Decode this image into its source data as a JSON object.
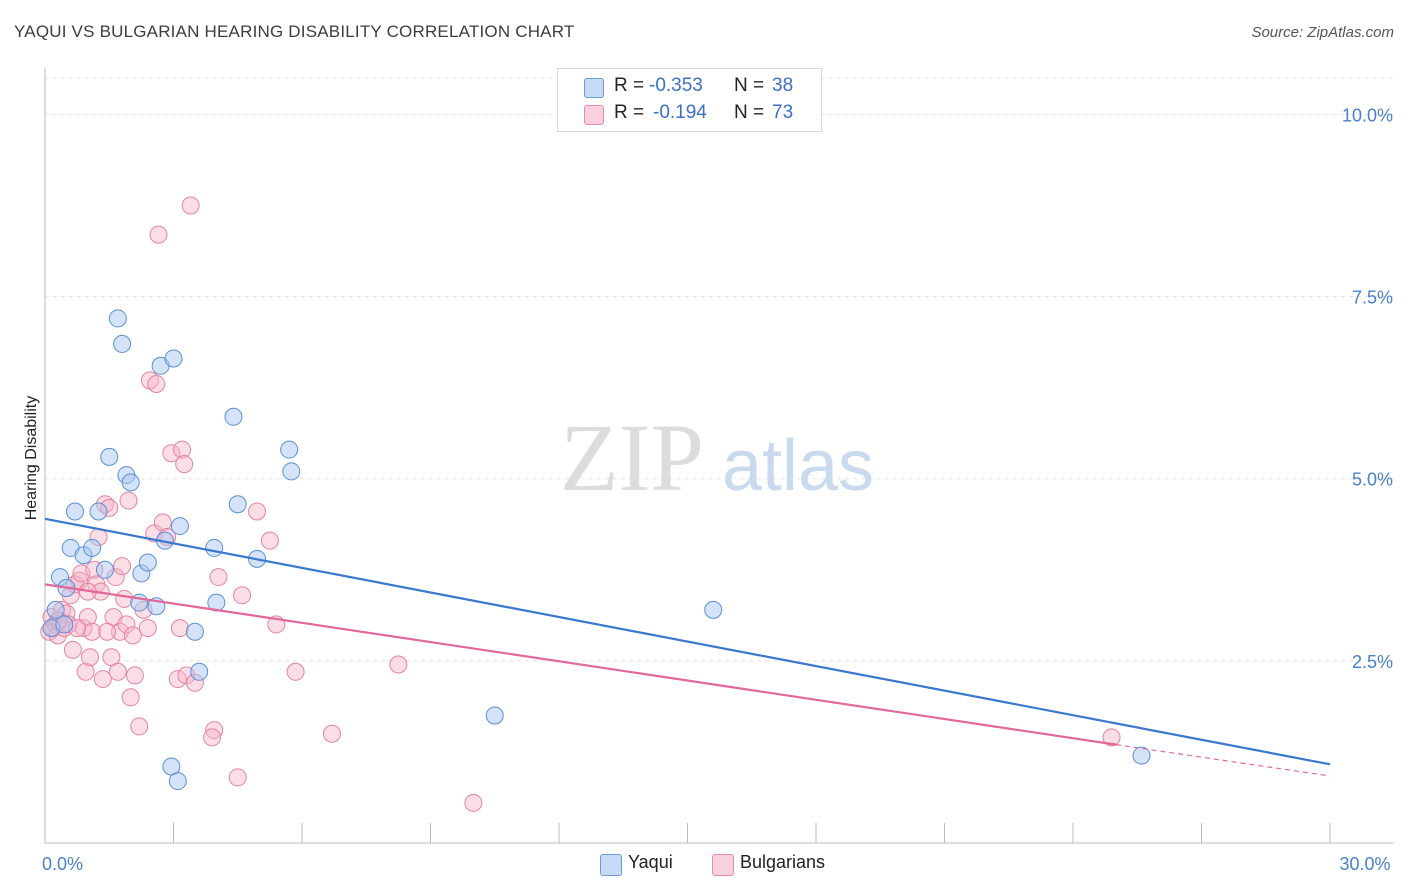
{
  "header": {
    "title": "YAQUI VS BULGARIAN HEARING DISABILITY CORRELATION CHART",
    "source": "Source: ZipAtlas.com"
  },
  "watermark": {
    "zip": "ZIP",
    "atlas": "atlas"
  },
  "legend": {
    "rows": [
      {
        "r_label": "R =",
        "r_value": "-0.353",
        "n_label": "N =",
        "n_value": "38",
        "color": "#a9c8f0"
      },
      {
        "r_label": "R =",
        "r_value": "-0.194",
        "n_label": "N =",
        "n_value": "73",
        "color": "#f6b3c8"
      }
    ]
  },
  "bottom_legend": [
    {
      "label": "Yaqui",
      "color": "#a9c8f0"
    },
    {
      "label": "Bulgarians",
      "color": "#f6b3c8"
    }
  ],
  "colors": {
    "yaqui_fill": "#a9c8f0",
    "yaqui_stroke": "#5b8fd6",
    "yaqui_line": "#3a78d0",
    "bulg_fill": "#f6b3c8",
    "bulg_stroke": "#e583a3",
    "bulg_line": "#e2679a",
    "grid": "#e3e3e3",
    "tick_text": "#4a7fcc"
  },
  "chart_data": {
    "type": "scatter",
    "title": "YAQUI VS BULGARIAN HEARING DISABILITY CORRELATION CHART",
    "xlabel": "",
    "ylabel": "Hearing Disability",
    "xlim": [
      0,
      30
    ],
    "ylim": [
      0,
      10.5
    ],
    "x_tick_labels": [
      {
        "value": 0,
        "label": "0.0%"
      },
      {
        "value": 30,
        "label": "30.0%"
      }
    ],
    "y_tick_labels": [
      {
        "value": 2.5,
        "label": "2.5%"
      },
      {
        "value": 5.0,
        "label": "5.0%"
      },
      {
        "value": 7.5,
        "label": "7.5%"
      },
      {
        "value": 10.0,
        "label": "10.0%"
      }
    ],
    "series": [
      {
        "name": "Yaqui",
        "r": -0.353,
        "n": 38,
        "trend": {
          "x0": 0,
          "y0": 4.45,
          "x1": 30,
          "y1": 1.08
        },
        "points": [
          [
            0.25,
            3.2
          ],
          [
            0.35,
            3.65
          ],
          [
            0.5,
            3.5
          ],
          [
            0.7,
            4.55
          ],
          [
            0.6,
            4.05
          ],
          [
            0.9,
            3.95
          ],
          [
            1.1,
            4.05
          ],
          [
            1.25,
            4.55
          ],
          [
            1.4,
            3.75
          ],
          [
            1.5,
            5.3
          ],
          [
            1.7,
            7.2
          ],
          [
            1.8,
            6.85
          ],
          [
            1.9,
            5.05
          ],
          [
            2.0,
            4.95
          ],
          [
            2.2,
            3.3
          ],
          [
            2.25,
            3.7
          ],
          [
            2.4,
            3.85
          ],
          [
            2.6,
            3.25
          ],
          [
            2.7,
            6.55
          ],
          [
            2.8,
            4.15
          ],
          [
            3.0,
            6.65
          ],
          [
            3.15,
            4.35
          ],
          [
            2.95,
            1.05
          ],
          [
            3.1,
            0.85
          ],
          [
            3.5,
            2.9
          ],
          [
            3.6,
            2.35
          ],
          [
            3.95,
            4.05
          ],
          [
            4.0,
            3.3
          ],
          [
            4.4,
            5.85
          ],
          [
            4.5,
            4.65
          ],
          [
            4.95,
            3.9
          ],
          [
            5.7,
            5.4
          ],
          [
            5.75,
            5.1
          ],
          [
            10.5,
            1.75
          ],
          [
            15.6,
            3.2
          ],
          [
            25.6,
            1.2
          ],
          [
            0.15,
            2.95
          ],
          [
            0.45,
            3.0
          ]
        ]
      },
      {
        "name": "Bulgarians",
        "r": -0.194,
        "n": 73,
        "trend": {
          "x0": 0,
          "y0": 3.55,
          "x1": 25,
          "y1": 1.35,
          "dash_x1": 30,
          "dash_y1": 0.92
        },
        "points": [
          [
            0.1,
            2.9
          ],
          [
            0.15,
            3.1
          ],
          [
            0.2,
            2.95
          ],
          [
            0.25,
            3.0
          ],
          [
            0.3,
            2.85
          ],
          [
            0.35,
            3.05
          ],
          [
            0.4,
            3.2
          ],
          [
            0.45,
            2.95
          ],
          [
            0.5,
            3.15
          ],
          [
            0.55,
            3.0
          ],
          [
            0.6,
            3.4
          ],
          [
            0.65,
            2.65
          ],
          [
            0.7,
            3.55
          ],
          [
            0.8,
            3.6
          ],
          [
            0.85,
            3.7
          ],
          [
            0.9,
            2.95
          ],
          [
            0.95,
            2.35
          ],
          [
            1.0,
            3.1
          ],
          [
            1.05,
            2.55
          ],
          [
            1.1,
            2.9
          ],
          [
            1.15,
            3.75
          ],
          [
            1.2,
            3.55
          ],
          [
            1.25,
            4.2
          ],
          [
            1.3,
            3.45
          ],
          [
            1.35,
            2.25
          ],
          [
            1.4,
            4.65
          ],
          [
            1.5,
            4.6
          ],
          [
            1.55,
            2.55
          ],
          [
            1.6,
            3.1
          ],
          [
            1.65,
            3.65
          ],
          [
            1.7,
            2.35
          ],
          [
            1.75,
            2.9
          ],
          [
            1.8,
            3.8
          ],
          [
            1.85,
            3.35
          ],
          [
            1.9,
            3.0
          ],
          [
            1.95,
            4.7
          ],
          [
            2.0,
            2.0
          ],
          [
            2.05,
            2.85
          ],
          [
            2.1,
            2.3
          ],
          [
            2.2,
            1.6
          ],
          [
            2.3,
            3.2
          ],
          [
            2.4,
            2.95
          ],
          [
            2.45,
            6.35
          ],
          [
            2.55,
            4.25
          ],
          [
            2.6,
            6.3
          ],
          [
            2.65,
            8.35
          ],
          [
            2.75,
            4.4
          ],
          [
            2.85,
            4.2
          ],
          [
            2.95,
            5.35
          ],
          [
            3.1,
            2.25
          ],
          [
            3.15,
            2.95
          ],
          [
            3.2,
            5.4
          ],
          [
            3.25,
            5.2
          ],
          [
            3.3,
            2.3
          ],
          [
            3.4,
            8.75
          ],
          [
            3.5,
            2.2
          ],
          [
            3.95,
            1.55
          ],
          [
            3.9,
            1.45
          ],
          [
            4.05,
            3.65
          ],
          [
            4.5,
            0.9
          ],
          [
            4.6,
            3.4
          ],
          [
            4.95,
            4.55
          ],
          [
            5.25,
            4.15
          ],
          [
            5.4,
            3.0
          ],
          [
            5.85,
            2.35
          ],
          [
            6.7,
            1.5
          ],
          [
            8.25,
            2.45
          ],
          [
            10.0,
            0.55
          ],
          [
            24.9,
            1.45
          ],
          [
            0.3,
            3.05
          ],
          [
            1.0,
            3.45
          ],
          [
            1.45,
            2.9
          ],
          [
            0.75,
            2.95
          ]
        ]
      }
    ]
  }
}
